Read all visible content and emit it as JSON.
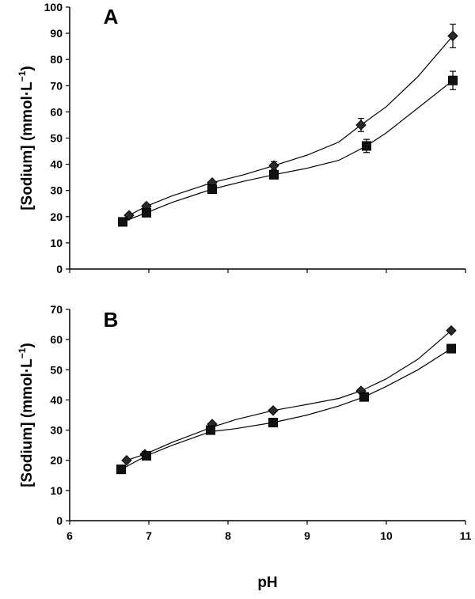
{
  "chart_data": [
    {
      "type": "line",
      "panel_label": "A",
      "xlabel": "",
      "ylabel": "[Sodium] (mmol·L",
      "ylabel_sup": "−1",
      "ylabel_close": ")",
      "xlim": [
        6,
        11
      ],
      "ylim": [
        0,
        100
      ],
      "y_ticks": [
        0,
        10,
        20,
        30,
        40,
        50,
        60,
        70,
        80,
        90,
        100
      ],
      "x_ticks": [
        6,
        7,
        8,
        9,
        10,
        11
      ],
      "show_x_tick_labels": false,
      "series": [
        {
          "marker": "diamond",
          "x": [
            6.75,
            6.97,
            7.8,
            8.58,
            9.68,
            10.84
          ],
          "y": [
            20.5,
            24,
            33,
            39.5,
            55,
            89
          ],
          "err": [
            0,
            0,
            0,
            1.5,
            2.5,
            4.5
          ],
          "curve_x": [
            6.75,
            6.97,
            7.3,
            7.8,
            8.2,
            8.58,
            9.0,
            9.4,
            9.68,
            10.0,
            10.4,
            10.84
          ],
          "curve_y": [
            20.5,
            24,
            28,
            33,
            36,
            39.5,
            43.5,
            48.5,
            55,
            62,
            73.5,
            89
          ]
        },
        {
          "marker": "square",
          "x": [
            6.67,
            6.97,
            7.8,
            8.58,
            9.75,
            10.84
          ],
          "y": [
            18,
            21.5,
            30.5,
            36,
            47,
            72
          ],
          "err": [
            0,
            0,
            0,
            1.5,
            2.5,
            3.5
          ],
          "curve_x": [
            6.67,
            6.97,
            7.3,
            7.8,
            8.2,
            8.58,
            9.0,
            9.4,
            9.75,
            10.0,
            10.4,
            10.84
          ],
          "curve_y": [
            18,
            21.5,
            25.5,
            30.5,
            33.5,
            36,
            38.5,
            41.5,
            47,
            52,
            61.5,
            72
          ]
        }
      ]
    },
    {
      "type": "line",
      "panel_label": "B",
      "xlabel": "pH",
      "ylabel": "[Sodium] (mmol·L",
      "ylabel_sup": "−1",
      "ylabel_close": ")",
      "xlim": [
        6,
        11
      ],
      "ylim": [
        0,
        70
      ],
      "y_ticks": [
        0,
        10,
        20,
        30,
        40,
        50,
        60,
        70
      ],
      "x_ticks": [
        6,
        7,
        8,
        9,
        10,
        11
      ],
      "show_x_tick_labels": true,
      "series": [
        {
          "marker": "diamond",
          "x": [
            6.72,
            6.95,
            7.8,
            8.57,
            9.68,
            10.82
          ],
          "y": [
            20,
            22,
            32,
            36.5,
            43,
            63
          ],
          "err": [
            0,
            0,
            0,
            0,
            0,
            0
          ],
          "curve_x": [
            6.72,
            6.95,
            7.3,
            7.8,
            8.1,
            8.57,
            9.0,
            9.4,
            9.68,
            10.0,
            10.4,
            10.82
          ],
          "curve_y": [
            20,
            22,
            26,
            31,
            33.5,
            36.5,
            38.5,
            40.5,
            43,
            47,
            53.5,
            63
          ]
        },
        {
          "marker": "square",
          "x": [
            6.65,
            6.97,
            7.78,
            8.57,
            9.72,
            10.82
          ],
          "y": [
            17,
            21.5,
            30,
            32.5,
            41,
            57
          ],
          "err": [
            0,
            0,
            0,
            0,
            0,
            0
          ],
          "curve_x": [
            6.65,
            6.97,
            7.3,
            7.78,
            8.1,
            8.57,
            9.0,
            9.4,
            9.72,
            10.0,
            10.4,
            10.82
          ],
          "curve_y": [
            17,
            21.5,
            25,
            29.5,
            30.5,
            32.5,
            35,
            38,
            41,
            44.5,
            50,
            57
          ]
        }
      ]
    }
  ]
}
